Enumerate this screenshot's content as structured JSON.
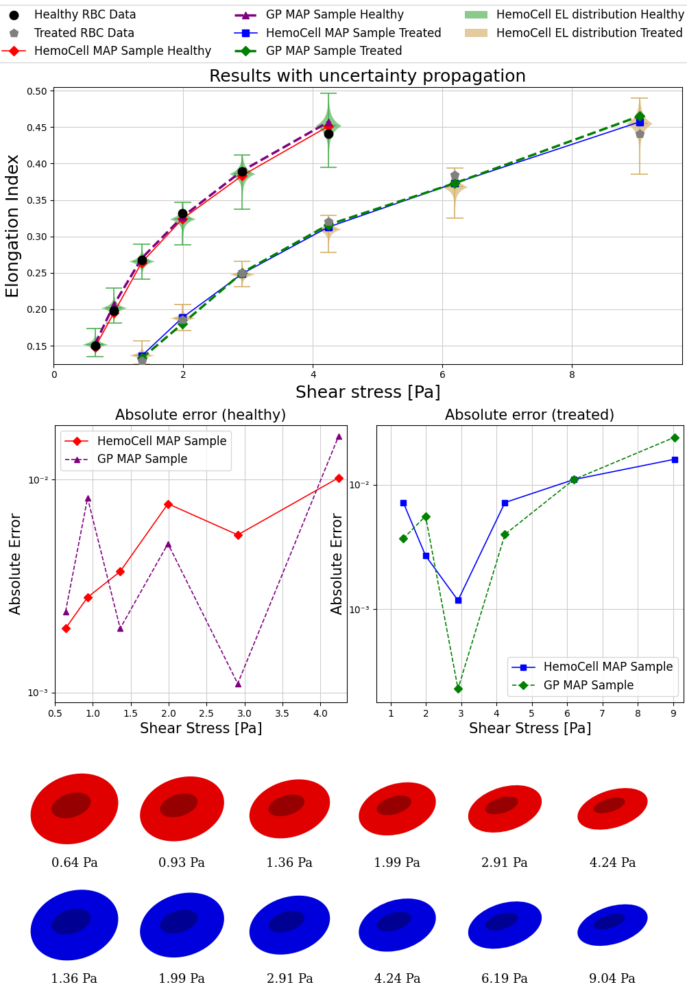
{
  "chart_data": [
    {
      "type": "line",
      "title": "Results with uncertainty propagation",
      "x_label": "Shear stress [Pa]",
      "y_label": "Elongation Index",
      "xlim": [
        0,
        9.7
      ],
      "xticks": [
        0,
        2,
        4,
        6,
        8
      ],
      "ylim": [
        0.125,
        0.505
      ],
      "yticks": [
        {
          "value": 0.15,
          "label": "0.15"
        },
        {
          "value": 0.2,
          "label": "0.20"
        },
        {
          "value": 0.25,
          "label": "0.25"
        },
        {
          "value": 0.3,
          "label": "0.30"
        },
        {
          "value": 0.35,
          "label": "0.35"
        },
        {
          "value": 0.4,
          "label": "0.40"
        },
        {
          "value": 0.45,
          "label": "0.45"
        },
        {
          "value": 0.5,
          "label": "0.50"
        }
      ],
      "grid": true,
      "legend": "upper center",
      "series": [
        {
          "name": "Healthy RBC Data",
          "type": "scatter",
          "color": "#000000",
          "marker": "circle",
          "line_style": "none",
          "x": [
            0.64,
            0.93,
            1.36,
            1.99,
            2.91,
            4.24
          ],
          "values": [
            0.15,
            0.198,
            0.268,
            0.332,
            0.389,
            0.441
          ]
        },
        {
          "name": "Treated RBC Data",
          "type": "scatter",
          "color": "#808080",
          "marker": "pentagon",
          "line_style": "none",
          "x": [
            1.36,
            1.99,
            2.91,
            4.24,
            6.19,
            9.04
          ],
          "values": [
            0.129,
            0.186,
            0.25,
            0.32,
            0.384,
            0.441
          ]
        },
        {
          "name": "HemoCell MAP Sample Healthy",
          "type": "line",
          "color": "#ff0000",
          "marker": "diamond",
          "line_style": "solid",
          "x": [
            0.64,
            0.93,
            1.36,
            1.99,
            2.91,
            4.24
          ],
          "values": [
            0.148,
            0.1952,
            0.2643,
            0.3243,
            0.3835,
            0.4512
          ]
        },
        {
          "name": "GP MAP Sample Healthy",
          "type": "line",
          "color": "#800080",
          "marker": "triangle",
          "line_style": "dashed",
          "x": [
            0.64,
            0.93,
            1.36,
            1.99,
            2.91,
            4.24
          ],
          "values": [
            0.1524,
            0.2062,
            0.27,
            0.327,
            0.39,
            0.457
          ]
        },
        {
          "name": "HemoCell MAP Sample Treated",
          "type": "line",
          "color": "#0000ff",
          "marker": "square",
          "line_style": "solid",
          "x": [
            1.36,
            1.99,
            2.91,
            4.24,
            6.19,
            9.04
          ],
          "values": [
            0.1362,
            0.1887,
            0.2488,
            0.3128,
            0.373,
            0.457
          ]
        },
        {
          "name": "GP MAP Sample Treated",
          "type": "line",
          "color": "#008000",
          "marker": "diamond",
          "line_style": "dashed",
          "x": [
            1.36,
            1.99,
            2.91,
            4.24,
            6.19,
            9.04
          ],
          "values": [
            0.1327,
            0.1804,
            0.2502,
            0.316,
            0.373,
            0.465
          ]
        },
        {
          "name": "HemoCell EL distribution Healthy",
          "type": "violin",
          "color": "#4caf50",
          "x": [
            0.64,
            0.93,
            1.36,
            1.99,
            2.91,
            4.24
          ],
          "values": [
            0.152,
            0.202,
            0.266,
            0.324,
            0.386,
            0.452
          ],
          "min": [
            0.135,
            0.181,
            0.241,
            0.288,
            0.337,
            0.395
          ],
          "max": [
            0.174,
            0.229,
            0.289,
            0.347,
            0.412,
            0.496
          ]
        },
        {
          "name": "HemoCell EL distribution Treated",
          "type": "violin",
          "color": "#d4b06a",
          "x": [
            1.36,
            1.99,
            2.91,
            4.24,
            6.19,
            9.04
          ],
          "values": [
            0.137,
            0.188,
            0.248,
            0.31,
            0.368,
            0.455
          ],
          "min": [
            0.125,
            0.171,
            0.231,
            0.278,
            0.325,
            0.385
          ],
          "max": [
            0.157,
            0.207,
            0.266,
            0.329,
            0.394,
            0.49
          ]
        }
      ]
    },
    {
      "type": "line",
      "title": "Absolute error (healthy)",
      "x_label": "Shear Stress [Pa]",
      "y_label": "Absolute Error",
      "log": "y",
      "grid": true,
      "legend": "upper left",
      "xlim": [
        0.5,
        4.35
      ],
      "xticks": [
        0.5,
        1.0,
        1.5,
        2.0,
        2.5,
        3.0,
        3.5,
        4.0
      ],
      "ylim": [
        0.0009,
        0.018
      ],
      "yticks": [
        {
          "value": 0.001,
          "label": "10⁻³"
        },
        {
          "value": 0.01,
          "label": "10⁻²"
        }
      ],
      "series": [
        {
          "name": "HemoCell MAP Sample",
          "color": "#ff0000",
          "marker": "diamond",
          "line_style": "solid",
          "x": [
            0.64,
            0.93,
            1.36,
            1.99,
            2.91,
            4.24
          ],
          "values": [
            0.002,
            0.0028,
            0.0037,
            0.0077,
            0.0055,
            0.0102
          ]
        },
        {
          "name": "GP MAP Sample",
          "color": "#800080",
          "marker": "triangle",
          "line_style": "dashed",
          "x": [
            0.64,
            0.93,
            1.36,
            1.99,
            2.91,
            4.24
          ],
          "values": [
            0.0024,
            0.0082,
            0.002,
            0.005,
            0.0011,
            0.016
          ]
        }
      ]
    },
    {
      "type": "line",
      "title": "Absolute error (treated)",
      "x_label": "Shear Stress [Pa]",
      "y_label": "Absolute Error",
      "log": "y",
      "grid": true,
      "legend": "lower right",
      "xlim": [
        0.6,
        9.3
      ],
      "xticks": [
        1,
        2,
        3,
        4,
        5,
        6,
        7,
        8,
        9
      ],
      "ylim": [
        0.00018,
        0.03
      ],
      "yticks": [
        {
          "value": 0.001,
          "label": "10⁻³"
        },
        {
          "value": 0.01,
          "label": "10⁻²"
        }
      ],
      "series": [
        {
          "name": "HemoCell MAP Sample",
          "color": "#0000ff",
          "marker": "square",
          "line_style": "solid",
          "x": [
            1.36,
            1.99,
            2.91,
            4.24,
            6.19,
            9.04
          ],
          "values": [
            0.0072,
            0.0027,
            0.00118,
            0.0072,
            0.011,
            0.016
          ]
        },
        {
          "name": "GP MAP Sample",
          "color": "#008000",
          "marker": "diamond",
          "line_style": "dashed",
          "x": [
            1.36,
            1.99,
            2.91,
            4.24,
            6.19,
            9.04
          ],
          "values": [
            0.0037,
            0.0056,
            0.00023,
            0.004,
            0.011,
            0.024
          ]
        }
      ]
    },
    {
      "type": "cell_shapes",
      "rows": [
        {
          "color": "#e00000",
          "labels": [
            "0.64 Pa",
            "0.93 Pa",
            "1.36 Pa",
            "1.99 Pa",
            "2.91 Pa",
            "4.24 Pa"
          ]
        },
        {
          "color": "#0000dd",
          "labels": [
            "1.36 Pa",
            "1.99 Pa",
            "2.91 Pa",
            "4.24 Pa",
            "6.19 Pa",
            "9.04 Pa"
          ]
        }
      ]
    }
  ]
}
